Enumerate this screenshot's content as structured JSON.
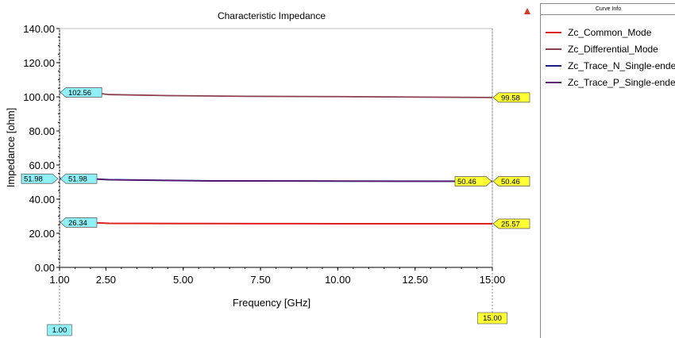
{
  "colors": {
    "common_mode": "#e02020",
    "differential_mode": "#8a4050",
    "trace_n": "#1c1c8a",
    "trace_p": "#5a1a6a",
    "marker_cyan": "#8ff0f8",
    "marker_yellow": "#ffff33"
  },
  "legend": {
    "header": "Curve Info"
  },
  "chart_data": {
    "type": "line",
    "title": "Characteristic Impedance",
    "xlabel": "Frequency [GHz]",
    "ylabel": "Impedance [ohm]",
    "xlim": [
      1.0,
      15.0
    ],
    "ylim": [
      0.0,
      140.0
    ],
    "x_ticks": [
      "1.00",
      "2.50",
      "5.00",
      "7.50",
      "10.00",
      "12.50",
      "15.00"
    ],
    "y_ticks": [
      "0.00",
      "20.00",
      "40.00",
      "60.00",
      "80.00",
      "100.00",
      "120.00",
      "140.00"
    ],
    "legend_position": "right panel",
    "grid": false,
    "series": [
      {
        "name": "Zc_Common_Mode",
        "x": [
          1.0,
          2.0,
          2.6,
          5.0,
          7.5,
          10.0,
          12.5,
          15.0
        ],
        "y": [
          26.34,
          26.34,
          25.8,
          25.7,
          25.65,
          25.6,
          25.58,
          25.57
        ]
      },
      {
        "name": "Zc_Differential_Mode",
        "x": [
          1.0,
          2.0,
          2.6,
          4.5,
          7.0,
          10.0,
          13.9,
          15.0
        ],
        "y": [
          102.56,
          102.56,
          101.3,
          100.7,
          100.3,
          100.1,
          99.7,
          99.58
        ]
      },
      {
        "name": "Zc_Trace_N_Single-ende",
        "x": [
          1.0,
          2.0,
          2.6,
          4.5,
          6.0,
          10.0,
          12.5,
          15.0
        ],
        "y": [
          51.98,
          51.98,
          51.4,
          51.0,
          50.7,
          50.6,
          50.5,
          50.46
        ]
      },
      {
        "name": "Zc_Trace_P_Single-ende",
        "x": [
          1.0,
          2.0,
          2.6,
          4.5,
          6.0,
          10.0,
          12.5,
          15.0
        ],
        "y": [
          51.98,
          51.98,
          51.4,
          51.0,
          50.7,
          50.6,
          50.5,
          50.46
        ]
      }
    ],
    "markers": {
      "left_axis": [
        "51.98"
      ],
      "start": [
        "102.56",
        "51.98",
        "26.34"
      ],
      "end": [
        "99.58",
        "50.46",
        "25.57"
      ],
      "end_inner": [
        "50.46"
      ],
      "x_cursor_start": "1.00",
      "x_cursor_end": "15.00"
    }
  }
}
